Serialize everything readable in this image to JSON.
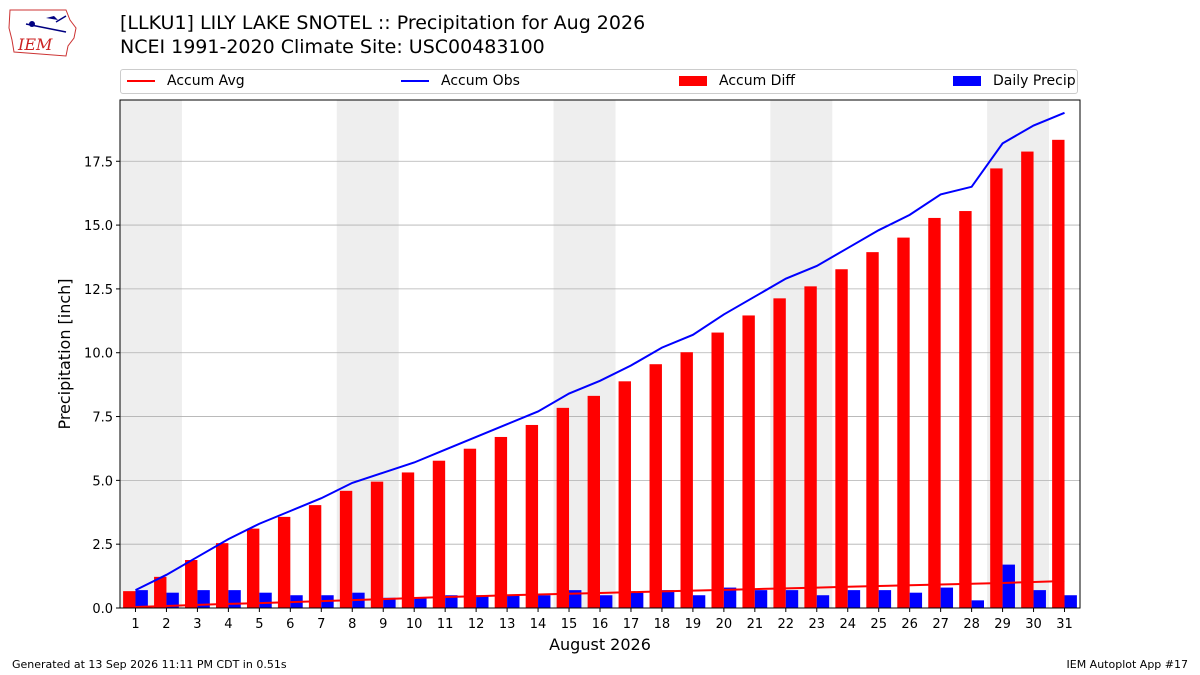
{
  "header": {
    "title": "[LLKU1] LILY LAKE SNOTEL :: Precipitation for Aug 2026",
    "subtitle": "NCEI 1991-2020 Climate Site: USC00483100"
  },
  "logo": {
    "text": "IEM",
    "icon": "iowa-state-outline-icon"
  },
  "footer": {
    "left": "Generated at 13 Sep 2026 11:11 PM CDT in 0.51s",
    "right": "IEM Autoplot App #17"
  },
  "colors": {
    "accum_avg": "#ff0000",
    "accum_obs": "#0000ff",
    "accum_diff": "#ff0000",
    "daily_precip": "#0000ff",
    "weekend_shade": "#eeeeee",
    "grid": "#b0b0b0"
  },
  "chart_data": {
    "type": "bar",
    "xlabel": "August 2026",
    "ylabel": "Precipitation [inch]",
    "ylim": [
      0,
      19.9
    ],
    "yticks": [
      "0.0",
      "2.5",
      "5.0",
      "7.5",
      "10.0",
      "12.5",
      "15.0",
      "17.5"
    ],
    "ytick_values": [
      0,
      2.5,
      5,
      7.5,
      10,
      12.5,
      15,
      17.5
    ],
    "grid": "y",
    "legend_placement": "top",
    "categories": [
      "1",
      "2",
      "3",
      "4",
      "5",
      "6",
      "7",
      "8",
      "9",
      "10",
      "11",
      "12",
      "13",
      "14",
      "15",
      "16",
      "17",
      "18",
      "19",
      "20",
      "21",
      "22",
      "23",
      "24",
      "25",
      "26",
      "27",
      "28",
      "29",
      "30",
      "31"
    ],
    "shaded_day_ranges": [
      [
        1,
        2
      ],
      [
        8,
        9
      ],
      [
        15,
        16
      ],
      [
        22,
        23
      ],
      [
        29,
        30
      ]
    ],
    "series": [
      {
        "name": "Accum Avg",
        "type": "line",
        "values": [
          0.04,
          0.08,
          0.12,
          0.16,
          0.19,
          0.23,
          0.27,
          0.31,
          0.35,
          0.39,
          0.43,
          0.46,
          0.5,
          0.53,
          0.56,
          0.59,
          0.62,
          0.65,
          0.68,
          0.71,
          0.74,
          0.77,
          0.8,
          0.83,
          0.86,
          0.89,
          0.92,
          0.95,
          0.98,
          1.02,
          1.06
        ]
      },
      {
        "name": "Accum Obs",
        "type": "line",
        "values": [
          0.7,
          1.3,
          2.0,
          2.7,
          3.3,
          3.8,
          4.3,
          4.9,
          5.3,
          5.7,
          6.2,
          6.7,
          7.2,
          7.7,
          8.4,
          8.9,
          9.5,
          10.2,
          10.7,
          11.5,
          12.2,
          12.9,
          13.4,
          14.1,
          14.8,
          15.4,
          16.2,
          16.5,
          18.2,
          18.9,
          19.4
        ]
      },
      {
        "name": "Accum Diff",
        "type": "bar",
        "values": [
          0.66,
          1.22,
          1.88,
          2.54,
          3.11,
          3.57,
          4.03,
          4.59,
          4.95,
          5.31,
          5.77,
          6.24,
          6.7,
          7.17,
          7.84,
          8.31,
          8.88,
          9.55,
          10.02,
          10.79,
          11.46,
          12.13,
          12.6,
          13.27,
          13.94,
          14.51,
          15.28,
          15.55,
          17.22,
          17.88,
          18.34
        ]
      },
      {
        "name": "Daily Precip",
        "type": "bar",
        "values": [
          0.7,
          0.6,
          0.7,
          0.7,
          0.6,
          0.5,
          0.5,
          0.6,
          0.4,
          0.4,
          0.5,
          0.5,
          0.5,
          0.5,
          0.7,
          0.5,
          0.6,
          0.7,
          0.5,
          0.8,
          0.7,
          0.7,
          0.5,
          0.7,
          0.7,
          0.6,
          0.8,
          0.3,
          1.7,
          0.7,
          0.5
        ]
      }
    ]
  }
}
